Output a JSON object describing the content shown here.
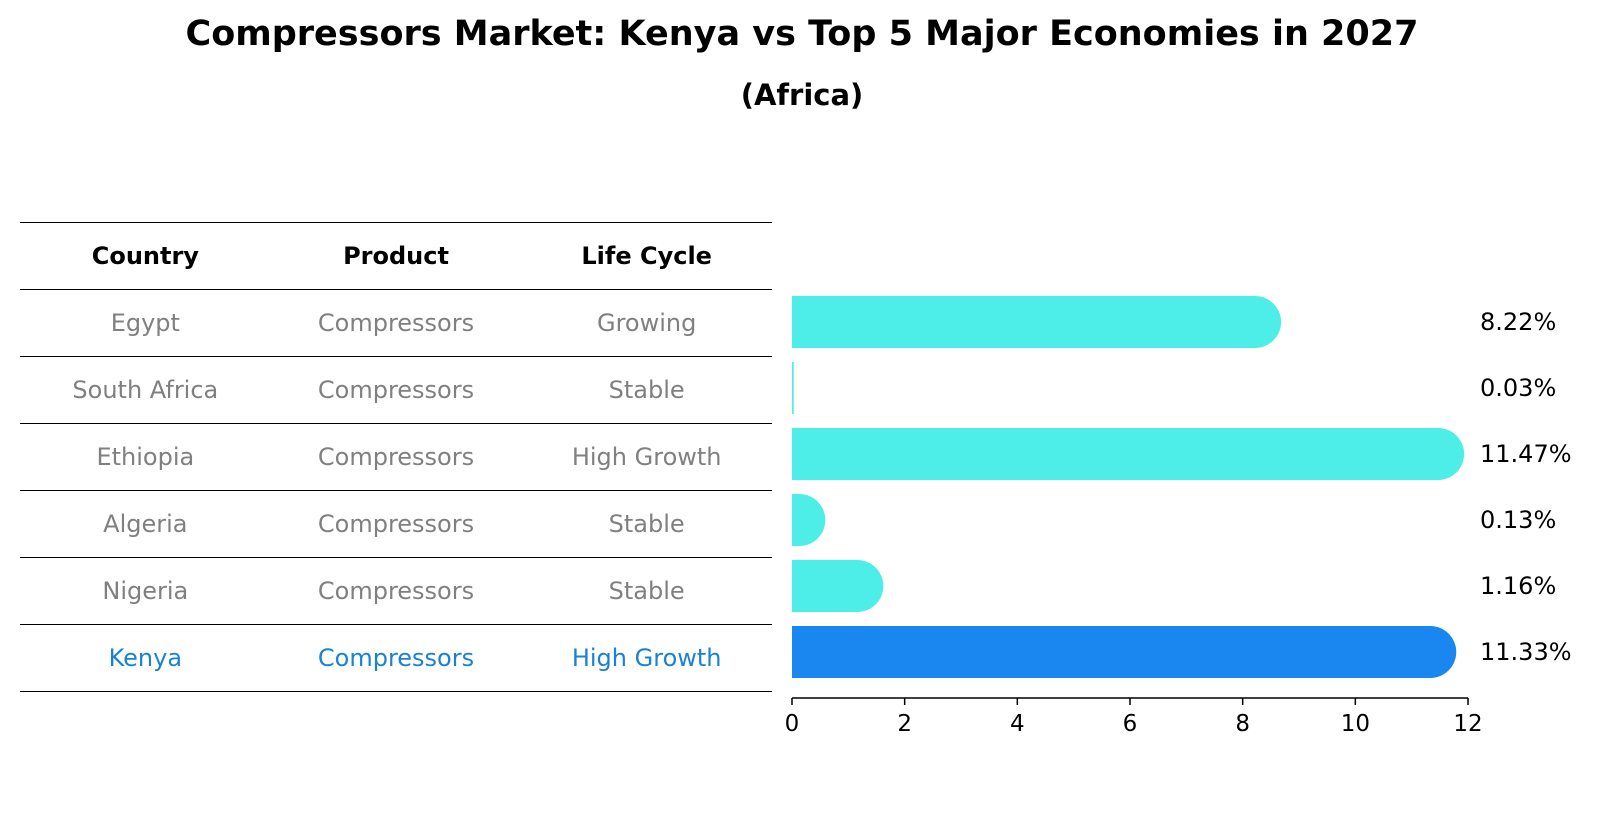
{
  "title": "Compressors Market: Kenya vs Top 5 Major Economies in 2027",
  "subtitle": "(Africa)",
  "table": {
    "headers": [
      "Country",
      "Product",
      "Life Cycle"
    ],
    "rows": [
      [
        "Egypt",
        "Compressors",
        "Growing"
      ],
      [
        "South Africa",
        "Compressors",
        "Stable"
      ],
      [
        "Ethiopia",
        "Compressors",
        "High Growth"
      ],
      [
        "Algeria",
        "Compressors",
        "Stable"
      ],
      [
        "Nigeria",
        "Compressors",
        "Stable"
      ],
      [
        "Kenya",
        "Compressors",
        "High Growth"
      ]
    ]
  },
  "chart_data": {
    "type": "bar",
    "orientation": "horizontal",
    "categories": [
      "Egypt",
      "South Africa",
      "Ethiopia",
      "Algeria",
      "Nigeria",
      "Kenya"
    ],
    "values": [
      8.22,
      0.03,
      11.47,
      0.13,
      1.16,
      11.33
    ],
    "value_labels": [
      "8.22%",
      "0.03%",
      "11.47%",
      "0.13%",
      "1.16%",
      "11.33%"
    ],
    "xlim": [
      0,
      12
    ],
    "xticks": [
      "0",
      "2",
      "4",
      "6",
      "8",
      "10",
      "12"
    ],
    "highlight": "Kenya",
    "colors": {
      "default": "#4eeee8",
      "highlight": "#1a86f0"
    }
  }
}
